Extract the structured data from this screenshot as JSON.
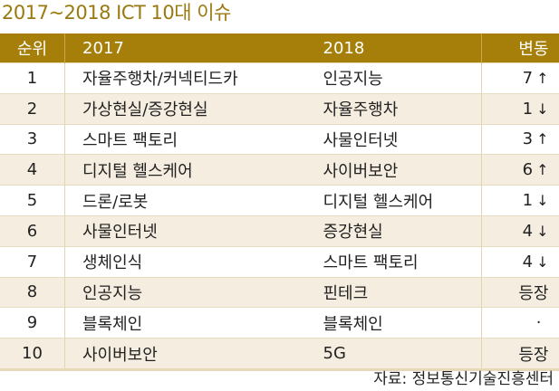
{
  "title": "2017~2018 ICT 10대 이슈",
  "table": {
    "headers": {
      "rank": "순위",
      "y2017": "2017",
      "y2018": "2018",
      "change": "변동"
    },
    "rows": [
      {
        "rank": "1",
        "y2017": "자율주행차/커넥티드카",
        "y2018": "인공지능",
        "change": "7",
        "arrow": "↑"
      },
      {
        "rank": "2",
        "y2017": "가상현실/증강현실",
        "y2018": "자율주행차",
        "change": "1",
        "arrow": "↓"
      },
      {
        "rank": "3",
        "y2017": "스마트 팩토리",
        "y2018": "사물인터넷",
        "change": "3",
        "arrow": "↑"
      },
      {
        "rank": "4",
        "y2017": "디지털 헬스케어",
        "y2018": "사이버보안",
        "change": "6",
        "arrow": "↑"
      },
      {
        "rank": "5",
        "y2017": "드론/로봇",
        "y2018": "디지털 헬스케어",
        "change": "1",
        "arrow": "↓"
      },
      {
        "rank": "6",
        "y2017": "사물인터넷",
        "y2018": "증강현실",
        "change": "4",
        "arrow": "↓"
      },
      {
        "rank": "7",
        "y2017": "생체인식",
        "y2018": "스마트 팩토리",
        "change": "4",
        "arrow": "↓"
      },
      {
        "rank": "8",
        "y2017": "인공지능",
        "y2018": "핀테크",
        "change": "등장",
        "arrow": ""
      },
      {
        "rank": "9",
        "y2017": "블록체인",
        "y2018": "블록체인",
        "change": "·",
        "arrow": ""
      },
      {
        "rank": "10",
        "y2017": "사이버보안",
        "y2018": "5G",
        "change": "등장",
        "arrow": ""
      }
    ]
  },
  "source": "자료: 정보통신기술진흥센터",
  "colors": {
    "header_bg": "#a57f0a",
    "title": "#9a7a0e",
    "alt_row": "#f5ede0"
  }
}
